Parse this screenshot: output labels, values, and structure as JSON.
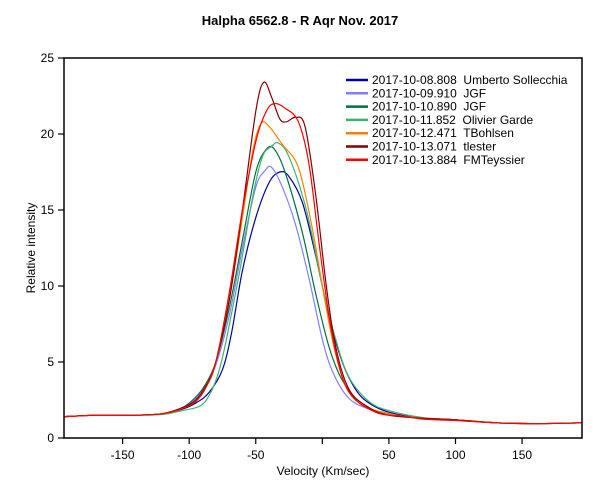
{
  "chart_data": {
    "type": "line",
    "title": "Halpha 6562.8 - R Aqr Nov. 2017",
    "xlabel": "Velocity (Km/sec)",
    "ylabel": "Relative intensity",
    "xlim": [
      -194,
      195
    ],
    "ylim": [
      0,
      25
    ],
    "xticks": [
      -150,
      -100,
      -50,
      0,
      50,
      100,
      150
    ],
    "xtick_labels": [
      "-150",
      "-100",
      "-50",
      "",
      "50",
      "100",
      "150"
    ],
    "yticks": [
      0,
      5,
      10,
      15,
      20,
      25
    ],
    "ytick_labels": [
      "0",
      "5",
      "10",
      "15",
      "20",
      "25"
    ],
    "grid": false,
    "legend_position": "top-right",
    "series": [
      {
        "name": "2017-10-08.808  Umberto Sollecchia",
        "color": "#00009c",
        "points": [
          [
            -194,
            1.4
          ],
          [
            -170,
            1.5
          ],
          [
            -140,
            1.5
          ],
          [
            -120,
            1.6
          ],
          [
            -105,
            1.9
          ],
          [
            -95,
            2.3
          ],
          [
            -85,
            3.0
          ],
          [
            -75,
            4.5
          ],
          [
            -68,
            7
          ],
          [
            -60,
            11
          ],
          [
            -50,
            14.5
          ],
          [
            -40,
            16.8
          ],
          [
            -32,
            17.5
          ],
          [
            -25,
            17.2
          ],
          [
            -15,
            15.5
          ],
          [
            -5,
            12
          ],
          [
            5,
            8
          ],
          [
            15,
            5
          ],
          [
            25,
            3.2
          ],
          [
            35,
            2.3
          ],
          [
            50,
            1.7
          ],
          [
            75,
            1.3
          ],
          [
            100,
            1.2
          ],
          [
            130,
            1.0
          ],
          [
            160,
            0.95
          ],
          [
            195,
            1.0
          ]
        ]
      },
      {
        "name": "2017-10-09.910  JGF",
        "color": "#8080ff",
        "points": [
          [
            -194,
            1.4
          ],
          [
            -170,
            1.5
          ],
          [
            -140,
            1.5
          ],
          [
            -120,
            1.6
          ],
          [
            -105,
            2.0
          ],
          [
            -95,
            2.6
          ],
          [
            -88,
            3.4
          ],
          [
            -80,
            4.8
          ],
          [
            -70,
            8
          ],
          [
            -60,
            12.5
          ],
          [
            -50,
            16.5
          ],
          [
            -43,
            17.6
          ],
          [
            -38,
            17.8
          ],
          [
            -30,
            16.5
          ],
          [
            -20,
            14
          ],
          [
            -10,
            10.5
          ],
          [
            0,
            6.5
          ],
          [
            8,
            4.3
          ],
          [
            20,
            2.6
          ],
          [
            35,
            1.9
          ],
          [
            50,
            1.5
          ],
          [
            75,
            1.3
          ],
          [
            100,
            1.2
          ],
          [
            130,
            1.0
          ],
          [
            160,
            0.95
          ],
          [
            195,
            1.0
          ]
        ]
      },
      {
        "name": "2017-10-10.890  JGF",
        "color": "#007040",
        "points": [
          [
            -194,
            1.4
          ],
          [
            -170,
            1.5
          ],
          [
            -140,
            1.5
          ],
          [
            -120,
            1.6
          ],
          [
            -105,
            2.0
          ],
          [
            -95,
            2.7
          ],
          [
            -88,
            3.5
          ],
          [
            -80,
            5
          ],
          [
            -70,
            8.5
          ],
          [
            -60,
            13
          ],
          [
            -50,
            17.5
          ],
          [
            -42,
            19
          ],
          [
            -36,
            19
          ],
          [
            -28,
            17.5
          ],
          [
            -15,
            13.5
          ],
          [
            -5,
            9.5
          ],
          [
            5,
            6
          ],
          [
            15,
            3.8
          ],
          [
            30,
            2.2
          ],
          [
            50,
            1.6
          ],
          [
            75,
            1.3
          ],
          [
            100,
            1.2
          ],
          [
            130,
            1.0
          ],
          [
            160,
            0.95
          ],
          [
            195,
            1.0
          ]
        ]
      },
      {
        "name": "2017-10-11.852  Olivier Garde",
        "color": "#3cb371",
        "points": [
          [
            -194,
            1.4
          ],
          [
            -170,
            1.5
          ],
          [
            -140,
            1.5
          ],
          [
            -120,
            1.55
          ],
          [
            -105,
            1.8
          ],
          [
            -92,
            2.1
          ],
          [
            -85,
            2.8
          ],
          [
            -78,
            4.3
          ],
          [
            -72,
            6.5
          ],
          [
            -62,
            11
          ],
          [
            -52,
            16
          ],
          [
            -45,
            18.5
          ],
          [
            -38,
            19.2
          ],
          [
            -33,
            19.4
          ],
          [
            -25,
            18.5
          ],
          [
            -12,
            15
          ],
          [
            0,
            10
          ],
          [
            10,
            6.5
          ],
          [
            20,
            4
          ],
          [
            35,
            2.4
          ],
          [
            50,
            1.8
          ],
          [
            75,
            1.35
          ],
          [
            100,
            1.2
          ],
          [
            130,
            1.0
          ],
          [
            160,
            0.95
          ],
          [
            195,
            1.0
          ]
        ]
      },
      {
        "name": "2017-10-12.471  TBohlsen",
        "color": "#ff8000",
        "points": [
          [
            -194,
            1.4
          ],
          [
            -170,
            1.5
          ],
          [
            -140,
            1.5
          ],
          [
            -120,
            1.6
          ],
          [
            -105,
            1.95
          ],
          [
            -95,
            2.5
          ],
          [
            -87,
            3.5
          ],
          [
            -80,
            5
          ],
          [
            -70,
            9
          ],
          [
            -60,
            14.5
          ],
          [
            -52,
            19
          ],
          [
            -46,
            20.7
          ],
          [
            -40,
            20.5
          ],
          [
            -30,
            19.3
          ],
          [
            -18,
            17.8
          ],
          [
            -8,
            14
          ],
          [
            2,
            9
          ],
          [
            10,
            5.5
          ],
          [
            20,
            3
          ],
          [
            35,
            2
          ],
          [
            50,
            1.6
          ],
          [
            75,
            1.3
          ],
          [
            100,
            1.2
          ],
          [
            130,
            1.0
          ],
          [
            160,
            0.95
          ],
          [
            195,
            1.0
          ]
        ]
      },
      {
        "name": "2017-10-13.071  tlester",
        "color": "#800000",
        "points": [
          [
            -194,
            1.4
          ],
          [
            -170,
            1.5
          ],
          [
            -140,
            1.5
          ],
          [
            -120,
            1.6
          ],
          [
            -105,
            2.0
          ],
          [
            -95,
            2.5
          ],
          [
            -87,
            3.5
          ],
          [
            -80,
            5
          ],
          [
            -70,
            9
          ],
          [
            -60,
            15
          ],
          [
            -50,
            21.5
          ],
          [
            -44,
            23.4
          ],
          [
            -38,
            22.4
          ],
          [
            -32,
            21
          ],
          [
            -27,
            20.8
          ],
          [
            -20,
            21.1
          ],
          [
            -13,
            20.5
          ],
          [
            -5,
            16
          ],
          [
            3,
            10
          ],
          [
            10,
            6
          ],
          [
            20,
            3.2
          ],
          [
            35,
            2
          ],
          [
            50,
            1.5
          ],
          [
            75,
            1.3
          ],
          [
            100,
            1.2
          ],
          [
            130,
            1.0
          ],
          [
            160,
            0.95
          ],
          [
            195,
            1.0
          ]
        ]
      },
      {
        "name": "2017-10-13.884  FMTeyssier",
        "color": "#ff0000",
        "points": [
          [
            -194,
            1.4
          ],
          [
            -170,
            1.5
          ],
          [
            -140,
            1.5
          ],
          [
            -120,
            1.6
          ],
          [
            -105,
            1.95
          ],
          [
            -95,
            2.4
          ],
          [
            -87,
            3.4
          ],
          [
            -80,
            5
          ],
          [
            -70,
            9.5
          ],
          [
            -60,
            15
          ],
          [
            -50,
            19.5
          ],
          [
            -42,
            21.5
          ],
          [
            -36,
            22
          ],
          [
            -28,
            21.7
          ],
          [
            -18,
            20.8
          ],
          [
            -10,
            18
          ],
          [
            -2,
            12.5
          ],
          [
            6,
            7.5
          ],
          [
            15,
            4
          ],
          [
            25,
            2.5
          ],
          [
            40,
            1.7
          ],
          [
            50,
            1.5
          ],
          [
            60,
            1.45
          ],
          [
            75,
            1.25
          ],
          [
            100,
            1.15
          ],
          [
            130,
            1.0
          ],
          [
            160,
            0.95
          ],
          [
            195,
            1.0
          ]
        ]
      }
    ]
  }
}
